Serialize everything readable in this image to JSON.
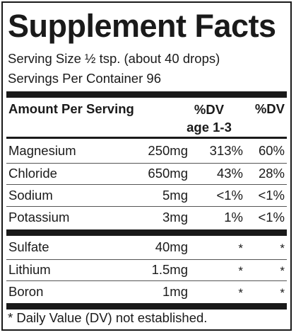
{
  "title": "Supplement Facts",
  "serving_size": "Serving Size ½ tsp. (about 40 drops)",
  "servings_per_container": "Servings Per Container 96",
  "header": {
    "amount": "Amount Per Serving",
    "dv_age_line1": "%DV",
    "dv_age_line2": "age 1-3",
    "dv": "%DV"
  },
  "group1": [
    {
      "name": "Magnesium",
      "amount": "250mg",
      "dv_age": "313%",
      "dv": "60%"
    },
    {
      "name": "Chloride",
      "amount": "650mg",
      "dv_age": "43%",
      "dv": "28%"
    },
    {
      "name": "Sodium",
      "amount": "5mg",
      "dv_age": "<1%",
      "dv": "<1%"
    },
    {
      "name": "Potassium",
      "amount": "3mg",
      "dv_age": "1%",
      "dv": "<1%"
    }
  ],
  "group2": [
    {
      "name": "Sulfate",
      "amount": "40mg",
      "dv_age": "*",
      "dv": "*"
    },
    {
      "name": "Lithium",
      "amount": "1.5mg",
      "dv_age": "*",
      "dv": "*"
    },
    {
      "name": "Boron",
      "amount": "1mg",
      "dv_age": "*",
      "dv": "*"
    }
  ],
  "footnote": "* Daily Value (DV) not established."
}
